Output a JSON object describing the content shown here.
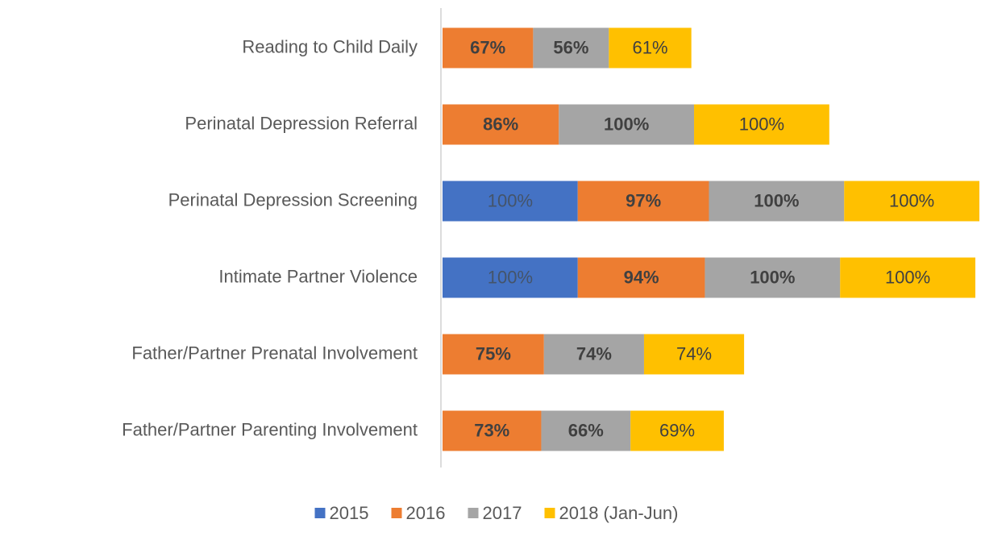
{
  "chart_data": {
    "type": "stacked-bar-horizontal",
    "categories": [
      "Reading to Child Daily",
      "Perinatal Depression Referral",
      "Perinatal Depression Screening",
      "Intimate Partner Violence",
      "Father/Partner Prenatal Involvement",
      "Father/Partner Parenting Involvement"
    ],
    "series": [
      {
        "name": "2015",
        "color": "#4472c4",
        "values": [
          null,
          null,
          100,
          100,
          null,
          null
        ],
        "value_labels": [
          null,
          null,
          "100%",
          "100%",
          null,
          null
        ]
      },
      {
        "name": "2016",
        "color": "#ed7d31",
        "values": [
          67,
          86,
          97,
          94,
          75,
          73
        ],
        "value_labels": [
          "67%",
          "86%",
          "97%",
          "94%",
          "75%",
          "73%"
        ]
      },
      {
        "name": "2017",
        "color": "#a5a5a5",
        "values": [
          56,
          100,
          100,
          100,
          74,
          66
        ],
        "value_labels": [
          "56%",
          "100%",
          "100%",
          "100%",
          "74%",
          "66%"
        ]
      },
      {
        "name": "2018 (Jan-Jun)",
        "color": "#ffc000",
        "values": [
          61,
          100,
          100,
          100,
          74,
          69
        ],
        "value_labels": [
          "61%",
          "100%",
          "100%",
          "100%",
          "74%",
          "69%"
        ]
      }
    ],
    "legend": "bottom"
  }
}
